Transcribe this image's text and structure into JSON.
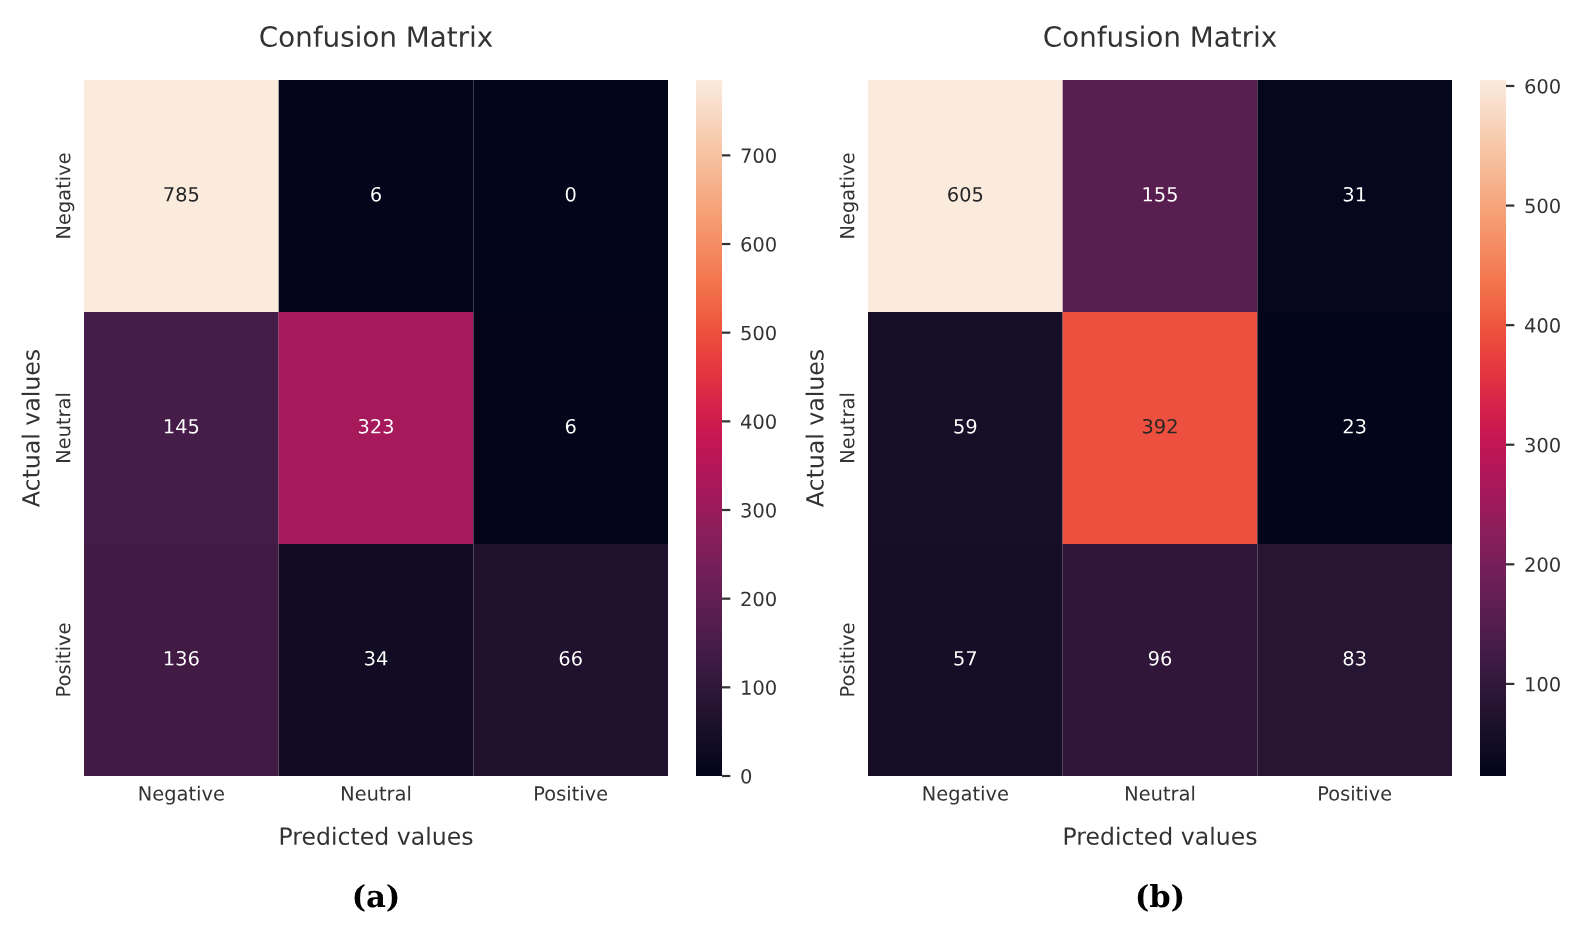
{
  "chart_data": [
    {
      "type": "heatmap",
      "title": "Confusion Matrix",
      "xlabel": "Predicted values",
      "ylabel": "Actual values",
      "categories": [
        "Negative",
        "Neutral",
        "Positive"
      ],
      "y_categories": [
        "Negative",
        "Neutral",
        "Positive"
      ],
      "cells": [
        [
          785,
          6,
          0
        ],
        [
          145,
          323,
          6
        ],
        [
          136,
          34,
          66
        ]
      ],
      "clim": [
        0,
        785
      ],
      "cticks": [
        0,
        100,
        200,
        300,
        400,
        500,
        600,
        700
      ],
      "data_labels": true,
      "grid": false,
      "annotations": [
        "(a)"
      ]
    },
    {
      "type": "heatmap",
      "title": "Confusion Matrix",
      "xlabel": "Predicted values",
      "ylabel": "Actual values",
      "categories": [
        "Negative",
        "Neutral",
        "Positive"
      ],
      "y_categories": [
        "Negative",
        "Neutral",
        "Positive"
      ],
      "cells": [
        [
          605,
          155,
          31
        ],
        [
          59,
          392,
          23
        ],
        [
          57,
          96,
          83
        ]
      ],
      "clim": [
        23,
        605
      ],
      "cticks": [
        100,
        200,
        300,
        400,
        500,
        600
      ],
      "data_labels": true,
      "grid": false,
      "annotations": [
        "(b)"
      ]
    }
  ]
}
